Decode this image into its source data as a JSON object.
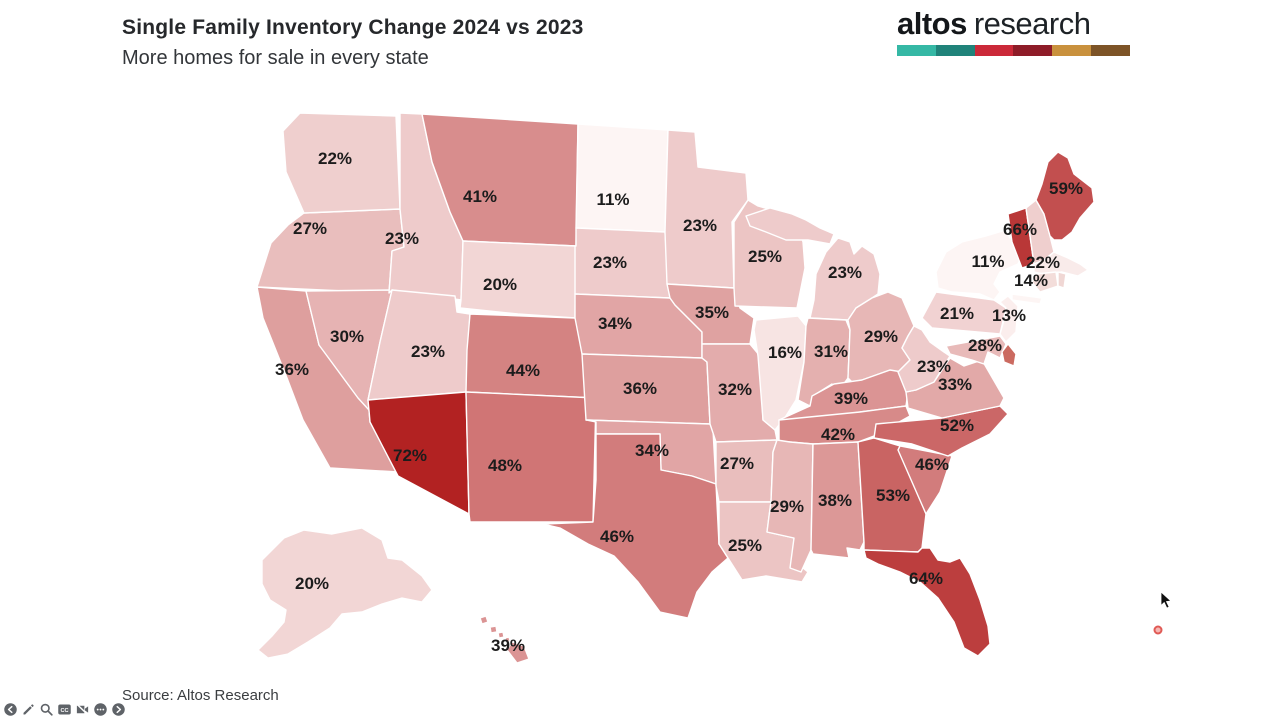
{
  "header": {
    "title": "Single Family Inventory Change 2024 vs 2023",
    "subtitle": "More homes for sale in every state"
  },
  "logo": {
    "brand_bold": "altos",
    "brand_light": "research",
    "bar_colors": [
      "#35b8a5",
      "#20837a",
      "#cb2939",
      "#8e1c28",
      "#c9913d",
      "#7d5427"
    ]
  },
  "source": "Source: Altos Research",
  "chart_data": {
    "type": "choropleth",
    "title": "Single Family Inventory Change 2024 vs 2023",
    "subtitle": "More homes for sale in every state",
    "region": "United States",
    "unit": "%",
    "color_scale": {
      "min": 11,
      "max": 72,
      "low_color": "#fdf5f4",
      "high_color": "#b22222"
    },
    "states": [
      {
        "id": "WA",
        "value": 22
      },
      {
        "id": "OR",
        "value": 27
      },
      {
        "id": "CA",
        "value": 36
      },
      {
        "id": "NV",
        "value": 30
      },
      {
        "id": "ID",
        "value": 23
      },
      {
        "id": "MT",
        "value": 41
      },
      {
        "id": "WY",
        "value": 20
      },
      {
        "id": "UT",
        "value": 23
      },
      {
        "id": "CO",
        "value": 44
      },
      {
        "id": "AZ",
        "value": 72
      },
      {
        "id": "NM",
        "value": 48
      },
      {
        "id": "ND",
        "value": 11
      },
      {
        "id": "SD",
        "value": 23
      },
      {
        "id": "NE",
        "value": 34
      },
      {
        "id": "KS",
        "value": 36
      },
      {
        "id": "OK",
        "value": 34
      },
      {
        "id": "TX",
        "value": 46
      },
      {
        "id": "MN",
        "value": 23
      },
      {
        "id": "IA",
        "value": 35
      },
      {
        "id": "MO",
        "value": 32
      },
      {
        "id": "AR",
        "value": 27
      },
      {
        "id": "LA",
        "value": 25
      },
      {
        "id": "WI",
        "value": 25
      },
      {
        "id": "IL",
        "value": 16
      },
      {
        "id": "MI",
        "value": 23
      },
      {
        "id": "IN",
        "value": 31
      },
      {
        "id": "OH",
        "value": 29
      },
      {
        "id": "KY",
        "value": 39
      },
      {
        "id": "TN",
        "value": 42
      },
      {
        "id": "MS",
        "value": 29
      },
      {
        "id": "AL",
        "value": 38
      },
      {
        "id": "GA",
        "value": 53
      },
      {
        "id": "FL",
        "value": 64
      },
      {
        "id": "SC",
        "value": 46
      },
      {
        "id": "NC",
        "value": 52
      },
      {
        "id": "VA",
        "value": 33
      },
      {
        "id": "WV",
        "value": 23
      },
      {
        "id": "MD",
        "value": 28
      },
      {
        "id": "PA",
        "value": 21
      },
      {
        "id": "NJ",
        "value": 13
      },
      {
        "id": "NY",
        "value": 11
      },
      {
        "id": "VT",
        "value": 66
      },
      {
        "id": "NH",
        "value": 22
      },
      {
        "id": "MA",
        "value": 14
      },
      {
        "id": "ME",
        "value": 59
      },
      {
        "id": "AK",
        "value": 20
      },
      {
        "id": "HI",
        "value": 39
      }
    ],
    "unlabeled_states": [
      {
        "id": "DE",
        "fill": "#cb6a60"
      },
      {
        "id": "CT",
        "fill": "#f3ddda"
      },
      {
        "id": "RI",
        "fill": "#f0d7d4"
      }
    ]
  },
  "toolbar": {
    "icons": [
      "back",
      "draw",
      "search",
      "captions",
      "camera-off",
      "more",
      "forward"
    ]
  },
  "decorations": {
    "red_dot_color": "#e05a55",
    "cursor_color": "#111111"
  }
}
